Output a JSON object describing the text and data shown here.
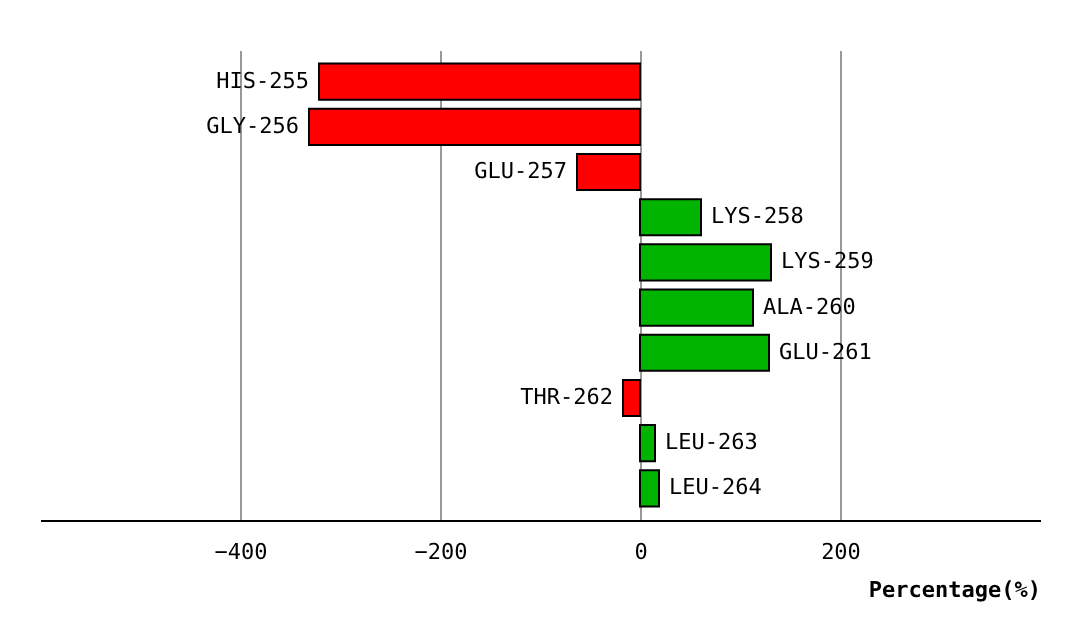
{
  "chart_data": {
    "type": "bar",
    "orientation": "horizontal",
    "xlabel": "Percentage(%)",
    "categories": [
      "HIS-255",
      "GLY-256",
      "GLU-257",
      "LYS-258",
      "LYS-259",
      "ALA-260",
      "GLU-261",
      "THR-262",
      "LEU-263",
      "LEU-264"
    ],
    "values": [
      -321,
      -331,
      -63,
      61,
      131,
      113,
      129,
      -17,
      15,
      19
    ],
    "colors": [
      "#ff0000",
      "#ff0000",
      "#ff0000",
      "#00b400",
      "#00b400",
      "#00b400",
      "#00b400",
      "#ff0000",
      "#00b400",
      "#00b400"
    ],
    "xlim": [
      -600,
      400
    ],
    "xticks": [
      -400,
      -200,
      0,
      200
    ],
    "grid": "x"
  }
}
